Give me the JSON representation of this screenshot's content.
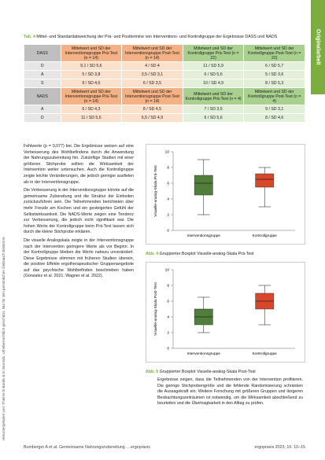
{
  "sidebar": {
    "left": "Heruntergeladen von: Thieme E-Books & E-Journals. Urheberrechtlich geschützt. Nur für den persönlichen Gebrauch bestimmt.",
    "right": "Originalarbeit"
  },
  "table": {
    "label": "Tab. 4",
    "caption": "Mittel- und Standardabweichung der Prä- und Posttermine von Interventions- und Kontrollgruppe der Ergebnisse DASS und NADS",
    "sections": [
      {
        "header": [
          "DASS",
          "Mittelwert und SD der Interventionsgruppe Prä-Test (n = 14)",
          "Mittelwert und SD der Interventionsgruppe Post-Test (n = 14)",
          "Mittelwert und SD der Kontrollgruppe Prä-Test (n = 22)",
          "Mittelwert und SD der Kontrollgruppe Post-Test (n = 22)"
        ],
        "rows": [
          [
            "D",
            "9,1 / SD 5,6",
            "4 / SD 4",
            "11 / SD 5,9",
            "6 / SD 5,7"
          ],
          [
            "A",
            "5 / SD 3,8",
            "3,5 / SD 3,1",
            "6 / SD 5,6",
            "5 / SD 3,6"
          ],
          [
            "S",
            "9 / SD 4,6",
            "6 / SD 3,5",
            "10 / SD 4,9",
            "8 / SD 5,3"
          ]
        ]
      },
      {
        "header": [
          "NADS",
          "Mittelwert und SD der Interventionsgruppe Prä-Test (n = 14)",
          "Mittelwert und SD der Interventionsgruppe Post-Test (n = 14)",
          "Mittelwert und SD der Kontrollgruppe Prä-Test (n = 4)",
          "Mittelwert und SD der Kontrollgruppe Post-Test (n = 4)"
        ],
        "rows": [
          [
            "A",
            "6 / SD 4,3",
            "8 / SD 4,5",
            "7 / SD 3,5",
            "9 / SD 3,1"
          ],
          [
            "D",
            "11 / SD 5,5",
            "6,5 / SD 4,9",
            "6 / SD 5,6",
            "8 / SD 4,6"
          ]
        ]
      }
    ]
  },
  "body": {
    "left": [
      "Fehlwerte (p = 0,077) bei. Die Ergebnisse weisen auf eine Verbesserung des Wohlbefindens durch die Anwendung der Nahrungszubereitung hin. Zukünftige Studien mit einer größeren Stichprobe sollten die Wirksamkeit der Intervention weiter untersuchen. Auch die Kontrollgruppe zeigte leichte Veränderungen, die jedoch geringer ausfielen als in der Interventionsgruppe.",
      "Die Verbesserung in der Interventionsgruppe könnte auf die gemeinsame Zubereitung und die Struktur der Einheiten zurückzuführen sein. Die Teilnehmenden berichteten über mehr Freude am Kochen und ein gesteigertes Gefühl der Selbstwirksamkeit. Die NADS-Werte zeigen eine Tendenz zur Verbesserung, die jedoch nicht signifikant war. Die hohen Werte der Kontrollgruppe beim Prä-Test lassen sich durch die kleine Stichprobe erklären.",
      "Die visuelle Analogskala zeigte in der Interventionsgruppe nach der Intervention geringere Werte als vor Beginn. In der Kontrollgruppe blieben die Werte nahezu unverändert. Diese Ergebnisse stimmen mit früheren Studien überein, die positive Effekte ergotherapeutischer Gruppenangebote auf das psychische Wohlbefinden beschrieben haben (Gonzalez et al. 2021; Wagner et al. 2022)."
    ],
    "right": "Ergebnisse zeigen, dass die Teilnehmenden von der Intervention profitieren. Die geringe Stichprobengröße und die fehlende Randomisierung schränken die Aussagekraft ein. Weitere Forschung mit größeren Gruppen und längeren Beobachtungszeiträumen ist notwendig, um die Wirksamkeit abschließend zu beurteilen und die Übertragbarkeit in den Alltag zu prüfen."
  },
  "figures": [
    {
      "label": "Abb. 4",
      "caption": "Gruppierter Boxplot Visuelle-analog-Skala Prä-Test",
      "ylabel": "Visuelle-analog-Skala Prä-Test",
      "ylim": [
        0,
        10
      ],
      "yticks": [
        0,
        2,
        4,
        6,
        8,
        10
      ],
      "categories": [
        "Interventionsgruppe",
        "Kontrollgruppe"
      ],
      "boxes": [
        {
          "color": "#4f7f38",
          "min": 2,
          "q1": 4.5,
          "median": 6,
          "q3": 7,
          "max": 9
        },
        {
          "color": "#d9472b",
          "min": 3,
          "q1": 5.5,
          "median": 6.5,
          "q3": 7.2,
          "max": 8
        }
      ]
    },
    {
      "label": "Abb. 5",
      "caption": "Gruppierter Boxplot Visuelle-analog-Skala Post-Test",
      "ylabel": "Visuelle-analog-Skala Post-Test",
      "ylim": [
        0,
        10
      ],
      "yticks": [
        0,
        2,
        4,
        6,
        8,
        10
      ],
      "categories": [
        "Interventionsgruppe",
        "Kontrollgruppe"
      ],
      "boxes": [
        {
          "color": "#4f7f38",
          "min": 2,
          "q1": 3,
          "median": 4,
          "q3": 5,
          "max": 6.5
        },
        {
          "color": "#d9472b",
          "min": 3,
          "q1": 5,
          "median": 6,
          "q3": 7,
          "max": 8
        }
      ]
    }
  ],
  "footer": {
    "left": "Bumberger A et al. Gemeinsame Nahrungszubereitung ... ergopraxis",
    "right": "ergopraxis 2023; 16: 10–15"
  }
}
